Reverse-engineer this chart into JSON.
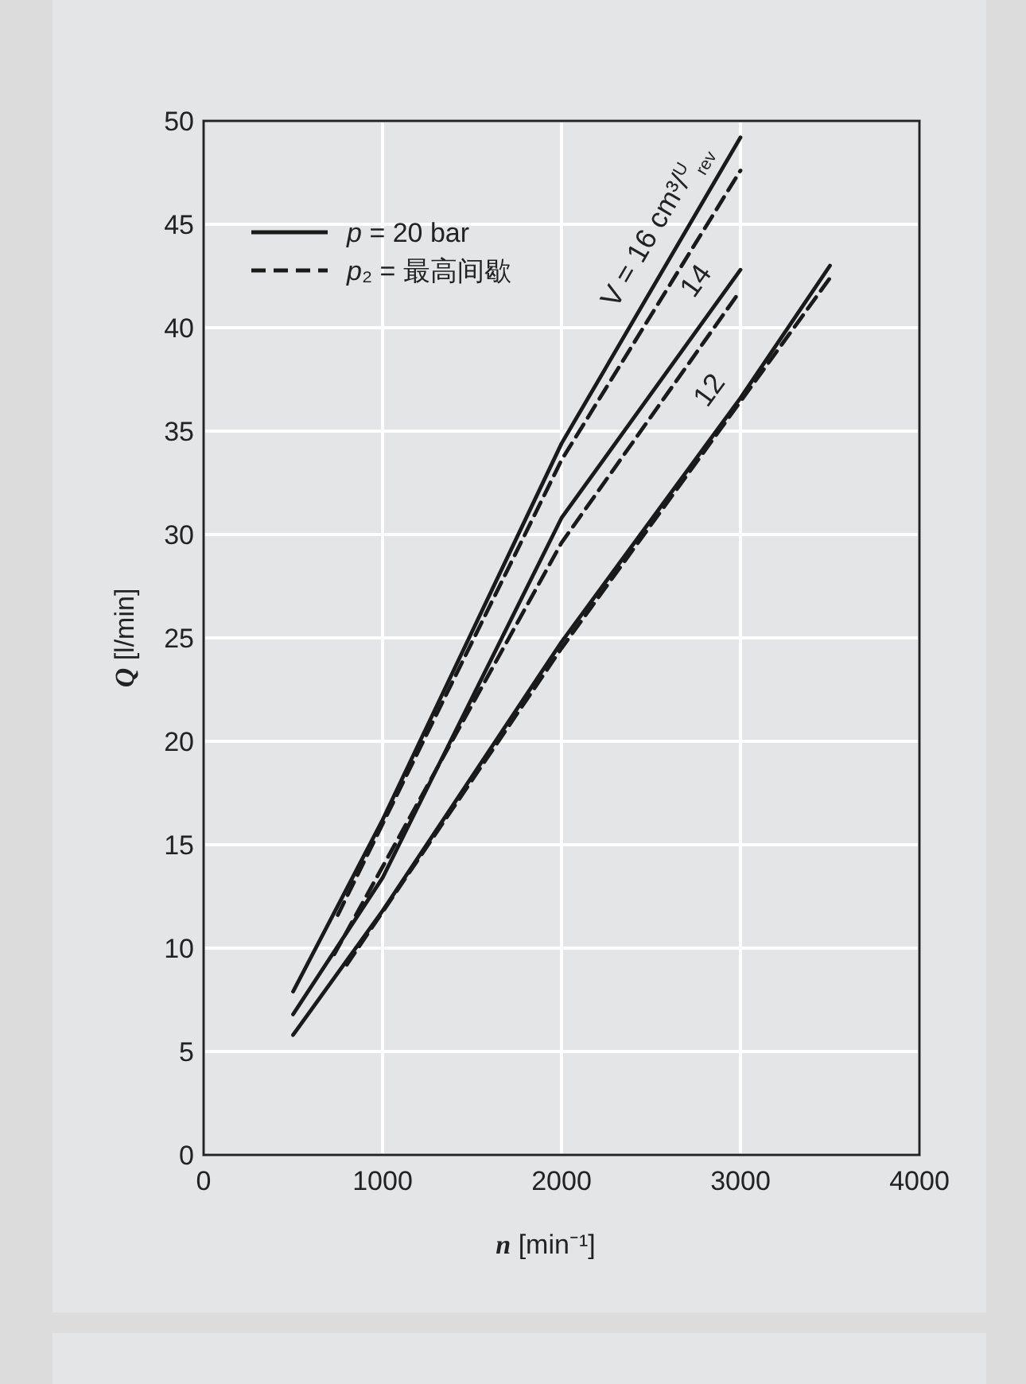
{
  "chart_data": {
    "type": "line",
    "xlabel": "n [min⁻¹]",
    "ylabel": "Q [l/min]",
    "xlim": [
      0,
      4000
    ],
    "ylim": [
      0,
      50
    ],
    "xticks": [
      0,
      1000,
      2000,
      3000,
      4000
    ],
    "yticks": [
      0,
      5,
      10,
      15,
      20,
      25,
      30,
      35,
      40,
      45,
      50
    ],
    "grid": true,
    "legend": "top left",
    "series": [
      {
        "name": "p =  20 bar",
        "color": "#1a1a1a",
        "line_style": "solid",
        "x": [
          500,
          1000,
          2000,
          3000
        ],
        "values": [
          7.9,
          16.2,
          34.4,
          49.2
        ]
      },
      {
        "color": "#1a1a1a",
        "line_style": "solid",
        "x": [
          500,
          1000,
          2000,
          3000
        ],
        "values": [
          6.8,
          13.4,
          30.8,
          42.8
        ]
      },
      {
        "color": "#1a1a1a",
        "line_style": "solid",
        "x": [
          500,
          1000,
          2000,
          3000,
          3500
        ],
        "values": [
          5.8,
          11.8,
          24.8,
          36.6,
          43.0
        ]
      },
      {
        "name": "p₂ = 最高间歇",
        "color": "#1a1a1a",
        "line_style": "dashed",
        "x": [
          750,
          2000,
          3000
        ],
        "values": [
          11.6,
          33.6,
          47.6
        ]
      },
      {
        "color": "#1a1a1a",
        "line_style": "dashed",
        "x": [
          730,
          2000,
          3000
        ],
        "values": [
          9.7,
          29.6,
          41.8
        ]
      },
      {
        "color": "#1a1a1a",
        "line_style": "dashed",
        "x": [
          800,
          2000,
          3500
        ],
        "values": [
          9.2,
          24.5,
          42.4
        ]
      }
    ],
    "annotations": [
      "V = 16 cm³/$^{U}$$_{rev}$",
      "14",
      "12"
    ]
  }
}
